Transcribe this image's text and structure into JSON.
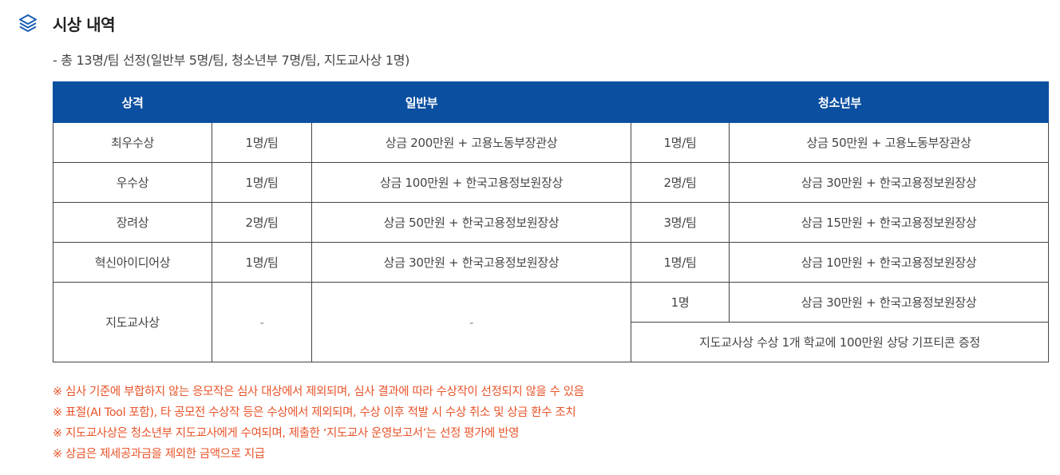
{
  "section": {
    "icon": "layers-icon",
    "title": "시상 내역"
  },
  "summary": "- 총 13명/팀 선정(일반부 5명/팀, 청소년부 7명/팀, 지도교사상 1명)",
  "table": {
    "headers": {
      "award": "상격",
      "general": "일반부",
      "youth": "청소년부"
    },
    "rows": [
      {
        "award": "최우수상",
        "general_count": "1명/팀",
        "general_prize": "상금 200만원 + 고용노동부장관상",
        "youth_count": "1명/팀",
        "youth_prize": "상금 50만원 + 고용노동부장관상"
      },
      {
        "award": "우수상",
        "general_count": "1명/팀",
        "general_prize": "상금 100만원 + 한국고용정보원장상",
        "youth_count": "2명/팀",
        "youth_prize": "상금 30만원 + 한국고용정보원장상"
      },
      {
        "award": "장려상",
        "general_count": "2명/팀",
        "general_prize": "상금 50만원 + 한국고용정보원장상",
        "youth_count": "3명/팀",
        "youth_prize": "상금 15만원 + 한국고용정보원장상"
      },
      {
        "award": "혁신아이디어상",
        "general_count": "1명/팀",
        "general_prize": "상금 30만원 + 한국고용정보원장상",
        "youth_count": "1명/팀",
        "youth_prize": "상금 10만원 + 한국고용정보원장상"
      }
    ],
    "teacher": {
      "award": "지도교사상",
      "general_count": "-",
      "general_prize": "-",
      "youth_count": "1명",
      "youth_prize": "상금 30만원 + 한국고용정보원장상",
      "school_prize": "지도교사상 수상 1개 학교에 100만원 상당 기프티콘 증정"
    }
  },
  "notes": [
    "※ 심사 기준에 부합하지 않는 응모작은 심사 대상에서 제외되며, 심사 결과에 따라 수상작이 선정되지 않을 수 있음",
    "※ 표절(AI Tool 포함), 타 공모전 수상작 등은 수상에서 제외되며, 수상 이후 적발 시 수상 취소 및 상금 환수 조치",
    "※ 지도교사상은 청소년부 지도교사에게 수여되며, 제출한 ‘지도교사 운영보고서’는 선정 평가에 반영",
    "※ 상금은 제세공과금을 제외한 금액으로 지급"
  ],
  "colors": {
    "header_bg": "#0b4fa0",
    "icon": "#1a5fb4",
    "note_text": "#e8542a",
    "border": "#444444"
  }
}
